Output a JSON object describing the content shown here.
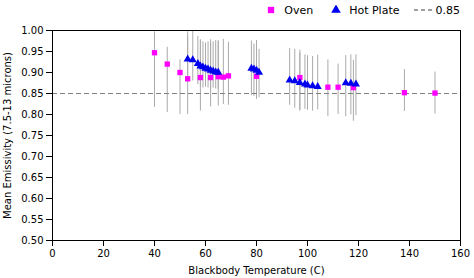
{
  "chart_data": {
    "type": "scatter",
    "title": "",
    "xlabel": "Blackbody Temperature (C)",
    "ylabel": "Mean Emissivity (7.5-13 microns)",
    "xlim": [
      0,
      160
    ],
    "ylim": [
      0.5,
      1.0
    ],
    "xticks": [
      0,
      20,
      40,
      60,
      80,
      100,
      120,
      140,
      160
    ],
    "yticks": [
      {
        "value": 0.5,
        "label": "0.50"
      },
      0.55,
      {
        "value": 0.6,
        "label": "0.60"
      },
      0.65,
      {
        "value": 0.7,
        "label": "0.70"
      },
      0.75,
      {
        "value": 0.8,
        "label": "0.80"
      },
      0.85,
      {
        "value": 0.9,
        "label": "0.90"
      },
      0.95,
      {
        "value": 1.0,
        "label": "1.00"
      }
    ],
    "grid": false,
    "series": [
      {
        "name": "Oven",
        "color": "#FF00FF",
        "marker": "square",
        "x": [
          40,
          45,
          50,
          53,
          58,
          62,
          65,
          67,
          69,
          80,
          97,
          108,
          112,
          118,
          138,
          150
        ],
        "values": [
          0.947,
          0.92,
          0.9,
          0.885,
          0.888,
          0.888,
          0.89,
          0.889,
          0.892,
          0.891,
          0.888,
          0.865,
          0.865,
          0.864,
          0.852,
          0.851
        ],
        "yerr_lo": [
          0.13,
          0.115,
          0.1,
          0.085,
          0.08,
          0.07,
          0.07,
          0.065,
          0.07,
          0.055,
          0.08,
          0.07,
          0.065,
          0.08,
          0.045,
          0.05
        ],
        "yerr_hi": [
          0.05,
          0.04,
          0.03,
          0.1,
          0.09,
          0.09,
          0.085,
          0.09,
          0.08,
          0.085,
          0.065,
          0.065,
          0.055,
          0.065,
          0.055,
          0.05
        ]
      },
      {
        "name": "Hot Plate",
        "color": "#0000EE",
        "marker": "triangle",
        "x": [
          53,
          55,
          57,
          58,
          59,
          60,
          61,
          62,
          63,
          64,
          65,
          78,
          79,
          80,
          81,
          93,
          95,
          97,
          99,
          100,
          102,
          104,
          115,
          117,
          119
        ],
        "values": [
          0.932,
          0.93,
          0.921,
          0.915,
          0.913,
          0.91,
          0.908,
          0.905,
          0.903,
          0.901,
          0.9,
          0.91,
          0.908,
          0.905,
          0.9,
          0.882,
          0.88,
          0.876,
          0.872,
          0.87,
          0.868,
          0.866,
          0.875,
          0.874,
          0.872
        ],
        "yerr_lo": [
          0.055,
          0.05,
          0.05,
          0.05,
          0.05,
          0.045,
          0.045,
          0.045,
          0.04,
          0.04,
          0.04,
          0.065,
          0.065,
          0.06,
          0.06,
          0.06,
          0.065,
          0.065,
          0.06,
          0.06,
          0.06,
          0.055,
          0.08,
          0.075,
          0.075
        ],
        "yerr_hi": [
          0.065,
          0.07,
          0.065,
          0.06,
          0.06,
          0.06,
          0.065,
          0.065,
          0.07,
          0.075,
          0.075,
          0.065,
          0.06,
          0.055,
          0.055,
          0.075,
          0.075,
          0.07,
          0.07,
          0.07,
          0.07,
          0.075,
          0.065,
          0.068,
          0.07
        ]
      },
      {
        "name": "0.85",
        "type": "hline",
        "color": "gray",
        "line_style": "dashed",
        "values": [
          0.85
        ]
      }
    ]
  }
}
